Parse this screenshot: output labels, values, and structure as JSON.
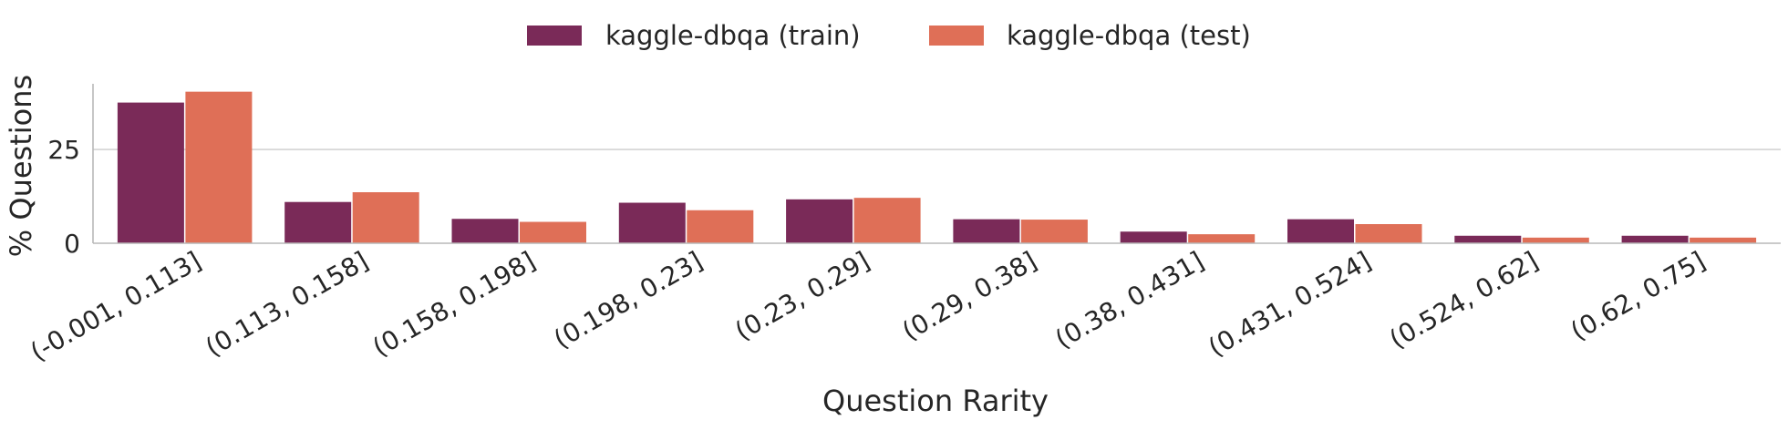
{
  "chart_data": {
    "type": "bar",
    "title": "",
    "xlabel": "Question Rarity",
    "ylabel": "% Questions",
    "categories": [
      "(-0.001, 0.113]",
      "(0.113, 0.158]",
      "(0.158, 0.198]",
      "(0.198, 0.23]",
      "(0.23, 0.29]",
      "(0.29, 0.38]",
      "(0.38, 0.431]",
      "(0.431, 0.524]",
      "(0.524, 0.62]",
      "(0.62, 0.75]"
    ],
    "series": [
      {
        "name": "kaggle-dbqa (train)",
        "color": "#7a2a58",
        "values": [
          37.5,
          11,
          6.5,
          10.8,
          11.7,
          6.4,
          3.1,
          6.4,
          2,
          2
        ]
      },
      {
        "name": "kaggle-dbqa (test)",
        "color": "#df6f57",
        "values": [
          40.4,
          13.6,
          5.7,
          8.8,
          12.1,
          6.3,
          2.4,
          5.1,
          1.5,
          1.5
        ]
      }
    ],
    "yticks": [
      0,
      25
    ],
    "ylim": [
      0,
      42.5
    ],
    "grid": "horizontal",
    "legend_position": "top-center"
  }
}
